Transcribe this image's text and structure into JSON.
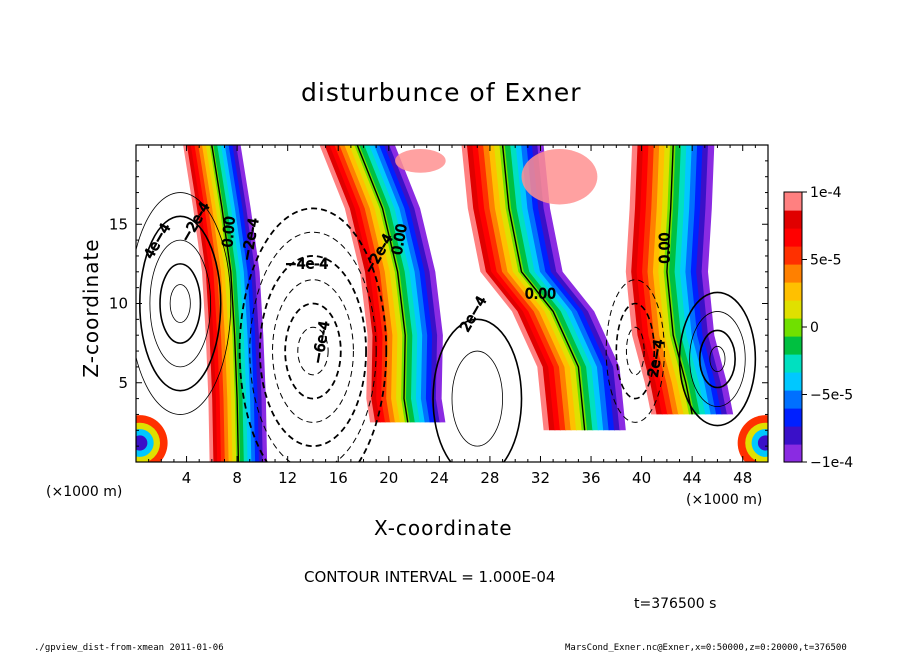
{
  "chart_data": {
    "type": "heatmap",
    "title": "disturbunce of Exner",
    "xlabel": "X-coordinate",
    "ylabel": "Z-coordinate",
    "x_unit": "(×1000 m)",
    "z_unit": "(×1000 m)",
    "xlim": [
      0,
      50
    ],
    "ylim": [
      0,
      20
    ],
    "x_ticks": [
      "4",
      "8",
      "12",
      "16",
      "20",
      "24",
      "28",
      "32",
      "36",
      "40",
      "44",
      "48"
    ],
    "y_ticks": [
      "5",
      "10",
      "15"
    ],
    "colorbar": {
      "range": [
        -0.0001,
        0.0001
      ],
      "tick_labels": [
        "1e-4",
        "5e-5",
        "0",
        "-5e-5",
        "-1e-4"
      ],
      "colors": [
        "#8a2be2",
        "#3a10c8",
        "#0020ff",
        "#0070ff",
        "#00c8ff",
        "#00e0c0",
        "#00c040",
        "#70e000",
        "#e0e000",
        "#ffc000",
        "#ff8000",
        "#ff3000",
        "#ff0000",
        "#e00000",
        "#ff8080"
      ]
    },
    "contour_labels": [
      "-4e-4",
      "-2e-4",
      "2e-4",
      "4e-4",
      "0.00",
      "-6e-4"
    ],
    "contour_interval_text": "CONTOUR INTERVAL = 1.000E-04",
    "time_text": "t=376500 s"
  },
  "footer": {
    "left": "./gpview_dist-from-xmean  2011-01-06",
    "right": "MarsCond_Exner.nc@Exner,x=0:50000,z=0:20000,t=376500"
  }
}
